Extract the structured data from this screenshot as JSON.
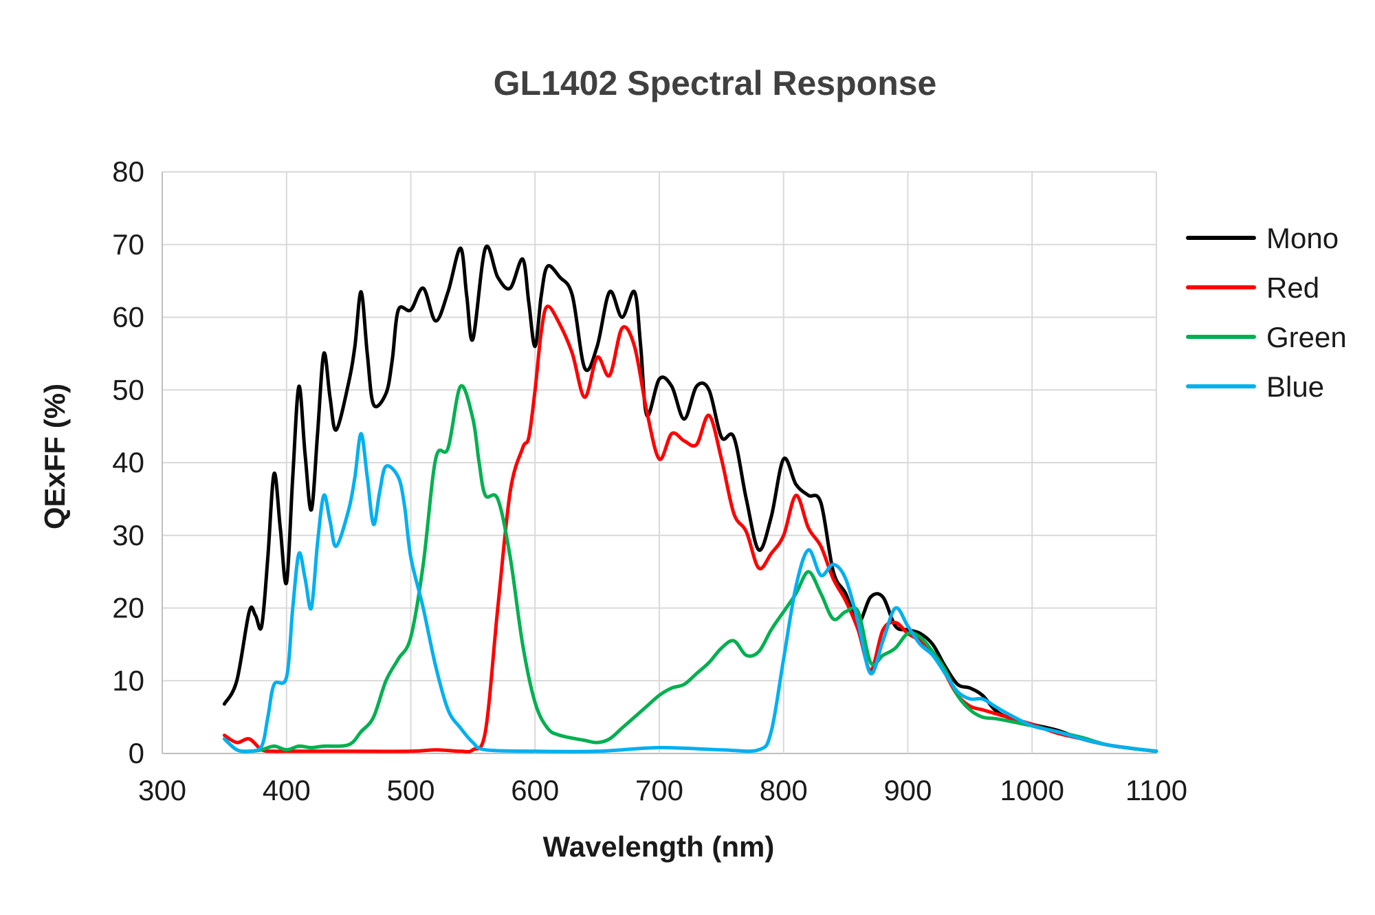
{
  "chart_data": {
    "type": "line",
    "title": "GL1402 Spectral Response",
    "xlabel": "Wavelength (nm)",
    "ylabel": "QExFF (%)",
    "xlim": [
      300,
      1100
    ],
    "ylim": [
      0,
      80
    ],
    "xticks": [
      300,
      400,
      500,
      600,
      700,
      800,
      900,
      1000,
      1100
    ],
    "yticks": [
      0,
      10,
      20,
      30,
      40,
      50,
      60,
      70,
      80
    ],
    "grid": true,
    "legend_position": "right",
    "series": [
      {
        "name": "Mono",
        "color": "#000000",
        "points": [
          [
            350,
            6.8
          ],
          [
            360,
            10
          ],
          [
            370,
            19.5
          ],
          [
            375,
            19
          ],
          [
            380,
            17.5
          ],
          [
            385,
            27
          ],
          [
            390,
            38.5
          ],
          [
            395,
            31
          ],
          [
            400,
            23.5
          ],
          [
            405,
            38
          ],
          [
            410,
            50.5
          ],
          [
            415,
            41
          ],
          [
            420,
            33.5
          ],
          [
            425,
            44
          ],
          [
            430,
            55
          ],
          [
            435,
            49
          ],
          [
            440,
            44.5
          ],
          [
            450,
            51
          ],
          [
            455,
            56
          ],
          [
            460,
            63.5
          ],
          [
            465,
            55
          ],
          [
            470,
            48
          ],
          [
            480,
            49.5
          ],
          [
            485,
            54
          ],
          [
            490,
            61
          ],
          [
            500,
            61
          ],
          [
            510,
            64
          ],
          [
            520,
            59.5
          ],
          [
            530,
            63.5
          ],
          [
            540,
            69.5
          ],
          [
            545,
            63
          ],
          [
            550,
            57
          ],
          [
            560,
            69.5
          ],
          [
            570,
            65.5
          ],
          [
            580,
            64
          ],
          [
            590,
            68
          ],
          [
            595,
            62
          ],
          [
            600,
            56
          ],
          [
            605,
            63
          ],
          [
            610,
            67
          ],
          [
            620,
            65.5
          ],
          [
            630,
            63
          ],
          [
            640,
            53
          ],
          [
            650,
            56
          ],
          [
            660,
            63.5
          ],
          [
            670,
            60
          ],
          [
            680,
            63.5
          ],
          [
            685,
            56
          ],
          [
            690,
            46.5
          ],
          [
            700,
            51.5
          ],
          [
            710,
            50.5
          ],
          [
            720,
            46
          ],
          [
            730,
            50.5
          ],
          [
            740,
            50
          ],
          [
            750,
            43.5
          ],
          [
            760,
            43.5
          ],
          [
            770,
            35
          ],
          [
            780,
            28
          ],
          [
            790,
            32.5
          ],
          [
            800,
            40.5
          ],
          [
            810,
            37
          ],
          [
            820,
            35.5
          ],
          [
            830,
            34.5
          ],
          [
            840,
            25
          ],
          [
            850,
            22
          ],
          [
            860,
            18
          ],
          [
            870,
            21.5
          ],
          [
            880,
            21.5
          ],
          [
            890,
            17.5
          ],
          [
            900,
            17
          ],
          [
            910,
            16.5
          ],
          [
            920,
            15
          ],
          [
            930,
            12
          ],
          [
            940,
            9.5
          ],
          [
            950,
            9
          ],
          [
            960,
            8
          ],
          [
            970,
            6
          ],
          [
            980,
            5
          ],
          [
            1000,
            4
          ],
          [
            1020,
            3.2
          ],
          [
            1040,
            2
          ],
          [
            1060,
            1.2
          ],
          [
            1080,
            0.7
          ],
          [
            1100,
            0.3
          ]
        ]
      },
      {
        "name": "Red",
        "color": "#ff0000",
        "points": [
          [
            350,
            2.5
          ],
          [
            360,
            1.5
          ],
          [
            370,
            2
          ],
          [
            380,
            0.5
          ],
          [
            390,
            0.3
          ],
          [
            400,
            0.3
          ],
          [
            450,
            0.3
          ],
          [
            500,
            0.3
          ],
          [
            520,
            0.5
          ],
          [
            540,
            0.3
          ],
          [
            550,
            0.5
          ],
          [
            560,
            3
          ],
          [
            570,
            20
          ],
          [
            580,
            36
          ],
          [
            590,
            42
          ],
          [
            595,
            43.5
          ],
          [
            600,
            50
          ],
          [
            605,
            58
          ],
          [
            610,
            61.5
          ],
          [
            620,
            59
          ],
          [
            630,
            55
          ],
          [
            640,
            49
          ],
          [
            650,
            54.5
          ],
          [
            660,
            52
          ],
          [
            670,
            58.5
          ],
          [
            680,
            56
          ],
          [
            690,
            47
          ],
          [
            700,
            40.5
          ],
          [
            710,
            44
          ],
          [
            720,
            43
          ],
          [
            730,
            42.5
          ],
          [
            740,
            46.5
          ],
          [
            750,
            40.5
          ],
          [
            760,
            33
          ],
          [
            770,
            30.5
          ],
          [
            780,
            25.5
          ],
          [
            790,
            27.5
          ],
          [
            800,
            30
          ],
          [
            810,
            35.5
          ],
          [
            820,
            31
          ],
          [
            830,
            28.5
          ],
          [
            840,
            24
          ],
          [
            850,
            21
          ],
          [
            860,
            17
          ],
          [
            870,
            11.5
          ],
          [
            880,
            17
          ],
          [
            890,
            18
          ],
          [
            900,
            16.5
          ],
          [
            910,
            15.5
          ],
          [
            920,
            14
          ],
          [
            930,
            11
          ],
          [
            940,
            8
          ],
          [
            950,
            6.5
          ],
          [
            960,
            6
          ],
          [
            970,
            5.5
          ],
          [
            1000,
            4
          ],
          [
            1020,
            2.8
          ],
          [
            1040,
            2
          ],
          [
            1060,
            1.2
          ],
          [
            1080,
            0.7
          ],
          [
            1100,
            0.3
          ]
        ]
      },
      {
        "name": "Green",
        "color": "#00b050",
        "points": [
          [
            350,
            2
          ],
          [
            360,
            0.5
          ],
          [
            370,
            0.3
          ],
          [
            380,
            0.5
          ],
          [
            390,
            1
          ],
          [
            400,
            0.5
          ],
          [
            410,
            1
          ],
          [
            420,
            0.8
          ],
          [
            430,
            1
          ],
          [
            450,
            1.2
          ],
          [
            460,
            3
          ],
          [
            470,
            5
          ],
          [
            480,
            10
          ],
          [
            490,
            13
          ],
          [
            500,
            16
          ],
          [
            510,
            26
          ],
          [
            520,
            40.5
          ],
          [
            530,
            42
          ],
          [
            540,
            50.5
          ],
          [
            550,
            46
          ],
          [
            555,
            40
          ],
          [
            560,
            35.5
          ],
          [
            570,
            35
          ],
          [
            580,
            27
          ],
          [
            590,
            15
          ],
          [
            600,
            7
          ],
          [
            610,
            3.5
          ],
          [
            620,
            2.5
          ],
          [
            640,
            1.8
          ],
          [
            650,
            1.5
          ],
          [
            660,
            2
          ],
          [
            670,
            3.5
          ],
          [
            680,
            5
          ],
          [
            690,
            6.5
          ],
          [
            700,
            8
          ],
          [
            710,
            9
          ],
          [
            720,
            9.5
          ],
          [
            730,
            11
          ],
          [
            740,
            12.5
          ],
          [
            750,
            14.5
          ],
          [
            760,
            15.5
          ],
          [
            770,
            13.5
          ],
          [
            780,
            14
          ],
          [
            790,
            17
          ],
          [
            800,
            19.5
          ],
          [
            810,
            22
          ],
          [
            820,
            25
          ],
          [
            830,
            22
          ],
          [
            840,
            18.5
          ],
          [
            850,
            19.5
          ],
          [
            860,
            19.5
          ],
          [
            870,
            12.5
          ],
          [
            880,
            13.5
          ],
          [
            890,
            14.5
          ],
          [
            900,
            16.5
          ],
          [
            910,
            16
          ],
          [
            920,
            14
          ],
          [
            930,
            11.5
          ],
          [
            940,
            8
          ],
          [
            950,
            6
          ],
          [
            960,
            5
          ],
          [
            970,
            4.8
          ],
          [
            980,
            4.5
          ],
          [
            1000,
            3.8
          ],
          [
            1020,
            3
          ],
          [
            1040,
            2.2
          ],
          [
            1060,
            1.2
          ],
          [
            1080,
            0.7
          ],
          [
            1100,
            0.3
          ]
        ]
      },
      {
        "name": "Blue",
        "color": "#00b0f0",
        "points": [
          [
            350,
            2
          ],
          [
            360,
            0.5
          ],
          [
            370,
            0.3
          ],
          [
            380,
            1
          ],
          [
            385,
            5
          ],
          [
            390,
            9.5
          ],
          [
            400,
            10.5
          ],
          [
            405,
            20
          ],
          [
            410,
            27.5
          ],
          [
            415,
            24
          ],
          [
            420,
            20
          ],
          [
            425,
            29
          ],
          [
            430,
            35.5
          ],
          [
            435,
            32
          ],
          [
            440,
            28.5
          ],
          [
            450,
            33.5
          ],
          [
            455,
            38
          ],
          [
            460,
            44
          ],
          [
            465,
            38
          ],
          [
            470,
            31.5
          ],
          [
            475,
            36
          ],
          [
            480,
            39.5
          ],
          [
            490,
            38
          ],
          [
            495,
            34
          ],
          [
            500,
            27
          ],
          [
            510,
            20
          ],
          [
            520,
            12
          ],
          [
            530,
            6
          ],
          [
            540,
            3.5
          ],
          [
            550,
            1.5
          ],
          [
            560,
            0.5
          ],
          [
            600,
            0.3
          ],
          [
            650,
            0.3
          ],
          [
            700,
            0.8
          ],
          [
            750,
            0.5
          ],
          [
            780,
            0.5
          ],
          [
            790,
            3
          ],
          [
            800,
            13
          ],
          [
            810,
            23
          ],
          [
            820,
            28
          ],
          [
            830,
            24.5
          ],
          [
            840,
            26
          ],
          [
            850,
            24
          ],
          [
            860,
            18
          ],
          [
            870,
            11
          ],
          [
            880,
            15.5
          ],
          [
            890,
            20
          ],
          [
            900,
            17.5
          ],
          [
            910,
            15
          ],
          [
            920,
            13.5
          ],
          [
            930,
            11
          ],
          [
            940,
            8.5
          ],
          [
            950,
            7.5
          ],
          [
            960,
            7.5
          ],
          [
            970,
            6.5
          ],
          [
            980,
            5.5
          ],
          [
            1000,
            3.8
          ],
          [
            1020,
            3
          ],
          [
            1040,
            2
          ],
          [
            1060,
            1.2
          ],
          [
            1080,
            0.7
          ],
          [
            1100,
            0.3
          ]
        ]
      }
    ]
  }
}
